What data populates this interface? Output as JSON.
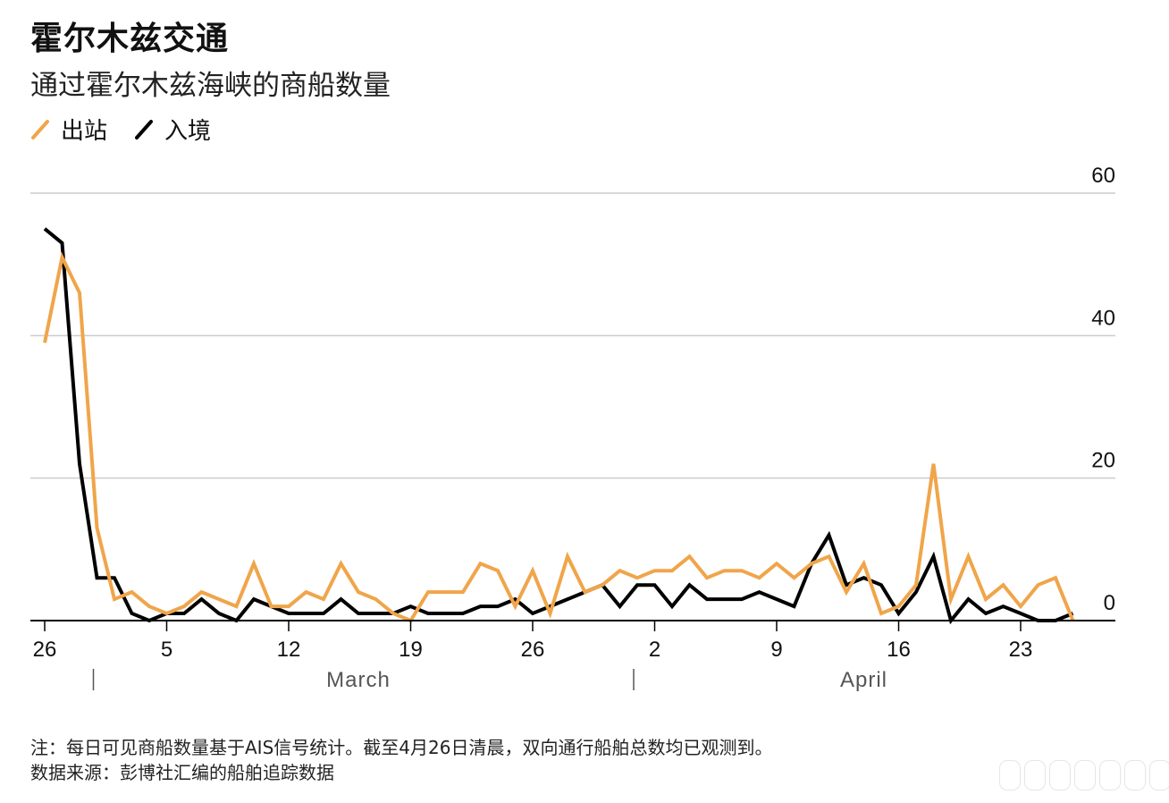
{
  "title": "霍尔木兹交通",
  "subtitle": "通过霍尔木兹海峡的商船数量",
  "legend": {
    "outbound": "出站",
    "inbound": "入境"
  },
  "colors": {
    "outbound": "#f0a54a",
    "inbound": "#000000",
    "grid": "#cccccc"
  },
  "notes": {
    "note": "注：每日可见商船数量基于AIS信号统计。截至4月26日清晨，双向通行船舶总数均已观测到。",
    "source": "数据来源：彭博社汇编的船舶追踪数据"
  },
  "chart_data": {
    "type": "line",
    "title": "霍尔木兹交通",
    "subtitle": "通过霍尔木兹海峡的商船数量",
    "ylim": [
      0,
      60
    ],
    "y_ticks": [
      "0",
      "20",
      "40",
      "60"
    ],
    "x_ticks": [
      "26",
      "5",
      "12",
      "19",
      "26",
      "2",
      "9",
      "16",
      "23"
    ],
    "x_tick_positions": [
      0,
      7,
      14,
      21,
      28,
      35,
      42,
      49,
      56
    ],
    "month_labels": [
      {
        "label": "March",
        "center_index": 18,
        "separator_index": 3
      },
      {
        "label": "April",
        "center_index": 47,
        "separator_index": 34
      }
    ],
    "grid": true,
    "legend_position": "top-left",
    "x": [
      "Feb 26",
      "Feb 27",
      "Feb 28",
      "Mar 1",
      "Mar 2",
      "Mar 3",
      "Mar 4",
      "Mar 5",
      "Mar 6",
      "Mar 7",
      "Mar 8",
      "Mar 9",
      "Mar 10",
      "Mar 11",
      "Mar 12",
      "Mar 13",
      "Mar 14",
      "Mar 15",
      "Mar 16",
      "Mar 17",
      "Mar 18",
      "Mar 19",
      "Mar 20",
      "Mar 21",
      "Mar 22",
      "Mar 23",
      "Mar 24",
      "Mar 25",
      "Mar 26",
      "Mar 27",
      "Mar 28",
      "Mar 29",
      "Mar 30",
      "Mar 31",
      "Apr 1",
      "Apr 2",
      "Apr 3",
      "Apr 4",
      "Apr 5",
      "Apr 6",
      "Apr 7",
      "Apr 8",
      "Apr 9",
      "Apr 10",
      "Apr 11",
      "Apr 12",
      "Apr 13",
      "Apr 14",
      "Apr 15",
      "Apr 16",
      "Apr 17",
      "Apr 18",
      "Apr 19",
      "Apr 20",
      "Apr 21",
      "Apr 22",
      "Apr 23",
      "Apr 24",
      "Apr 25",
      "Apr 26"
    ],
    "series": [
      {
        "name": "出站",
        "key": "outbound",
        "values": [
          39,
          51,
          46,
          13,
          3,
          4,
          2,
          1,
          2,
          4,
          3,
          2,
          8,
          2,
          2,
          4,
          3,
          8,
          4,
          3,
          1,
          0,
          4,
          4,
          4,
          8,
          7,
          2,
          7,
          1,
          9,
          4,
          5,
          7,
          6,
          7,
          7,
          9,
          6,
          7,
          7,
          6,
          8,
          6,
          8,
          9,
          4,
          8,
          1,
          2,
          5,
          22,
          3,
          9,
          3,
          5,
          2,
          5,
          6,
          0
        ]
      },
      {
        "name": "入境",
        "key": "inbound",
        "values": [
          55,
          53,
          22,
          6,
          6,
          1,
          0,
          1,
          1,
          3,
          1,
          0,
          3,
          2,
          1,
          1,
          1,
          3,
          1,
          1,
          1,
          2,
          1,
          1,
          1,
          2,
          2,
          3,
          1,
          2,
          3,
          4,
          5,
          2,
          5,
          5,
          2,
          5,
          3,
          3,
          3,
          4,
          3,
          2,
          8,
          12,
          5,
          6,
          5,
          1,
          4,
          9,
          0,
          3,
          1,
          2,
          1,
          0,
          0,
          1
        ]
      }
    ]
  }
}
